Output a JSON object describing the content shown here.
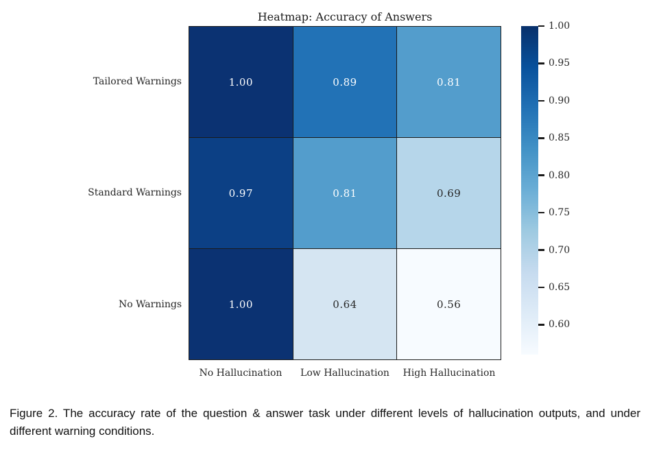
{
  "chart_data": {
    "type": "heatmap",
    "title": "Heatmap: Accuracy of Answers",
    "rows": [
      "Tailored Warnings",
      "Standard Warnings",
      "No Warnings"
    ],
    "columns": [
      "No Hallucination",
      "Low Hallucination",
      "High Hallucination"
    ],
    "values": [
      [
        1.0,
        0.89,
        0.81
      ],
      [
        0.97,
        0.81,
        0.69
      ],
      [
        1.0,
        0.64,
        0.56
      ]
    ],
    "value_format_decimals": 2,
    "cell_colors": [
      [
        "#0b3272",
        "#2272b6",
        "#539dcc"
      ],
      [
        "#0c4085",
        "#539dcc",
        "#b6d6ea"
      ],
      [
        "#0b3272",
        "#d5e5f2",
        "#f7fbff"
      ]
    ],
    "cell_text_colors": [
      [
        "#ffffff",
        "#ffffff",
        "#ffffff"
      ],
      [
        "#ffffff",
        "#ffffff",
        "#262626"
      ],
      [
        "#ffffff",
        "#262626",
        "#262626"
      ]
    ],
    "colormap": "Blues",
    "vmin": 0.56,
    "vmax": 1.0,
    "colorbar": {
      "ticks": [
        1.0,
        0.95,
        0.9,
        0.85,
        0.8,
        0.75,
        0.7,
        0.65,
        0.6
      ],
      "gradient_top_to_bottom": [
        "#08306b",
        "#08519c",
        "#2171b5",
        "#4292c6",
        "#6baed6",
        "#9ecae1",
        "#c6dbef",
        "#deebf7",
        "#f7fbff"
      ],
      "position": "right"
    },
    "grid": false,
    "legend": false
  },
  "caption": {
    "text": "Figure 2. The accuracy rate of the question & answer task under different levels of hallucination outputs, and under different warning conditions."
  }
}
